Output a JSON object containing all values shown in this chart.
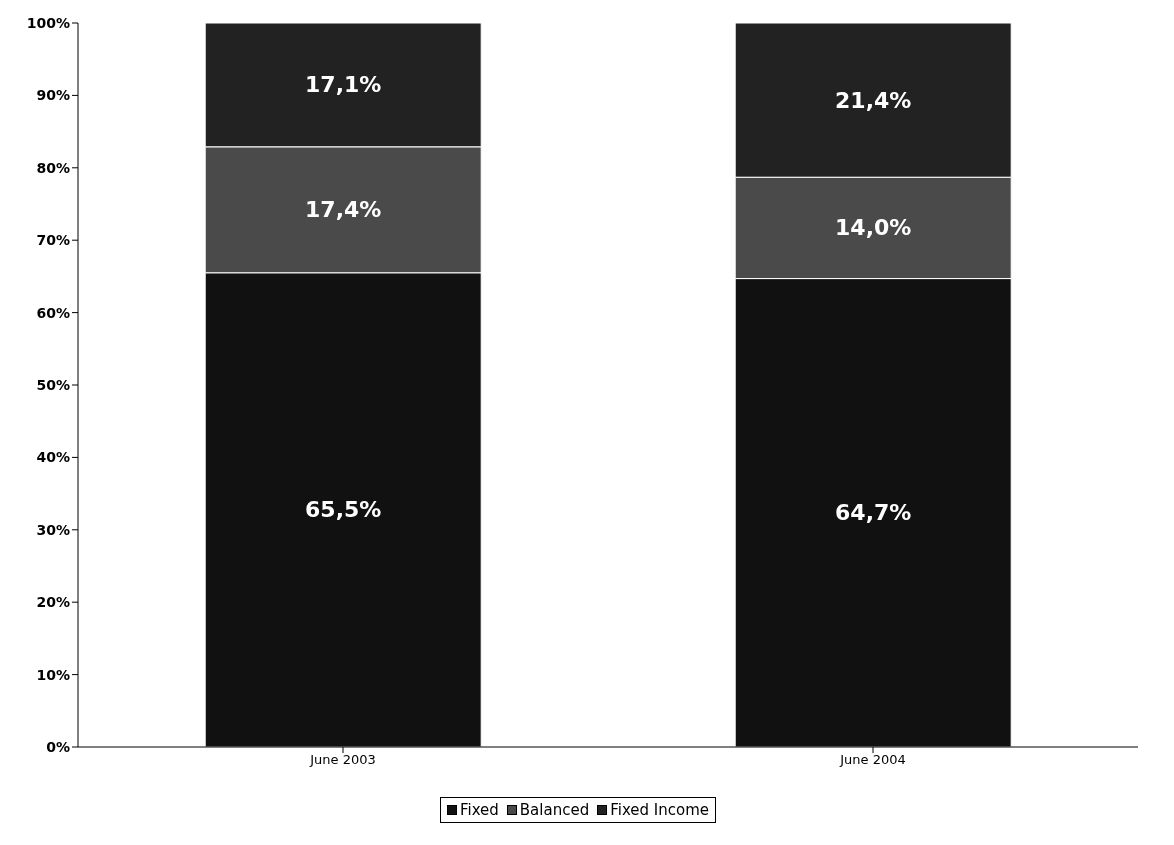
{
  "chart_data": {
    "type": "bar",
    "stacked": true,
    "categories": [
      "June 2003",
      "June 2004"
    ],
    "series": [
      {
        "name": "Fixed",
        "color": "#111111",
        "values": [
          65.5,
          64.7
        ],
        "value_labels": [
          "65,5%",
          "64,7%"
        ]
      },
      {
        "name": "Balanced",
        "color": "#4a4a4a",
        "values": [
          17.4,
          14.0
        ],
        "value_labels": [
          "17,4%",
          "14,0%"
        ]
      },
      {
        "name": "Fixed Income",
        "color": "#222222",
        "values": [
          17.1,
          21.4
        ],
        "value_labels": [
          "17,1%",
          "21,4%"
        ]
      }
    ],
    "ylim": [
      0,
      100
    ],
    "yticks": [
      {
        "value": 0,
        "label": "0%"
      },
      {
        "value": 10,
        "label": "10%"
      },
      {
        "value": 20,
        "label": "20%"
      },
      {
        "value": 30,
        "label": "30%"
      },
      {
        "value": 40,
        "label": "40%"
      },
      {
        "value": 50,
        "label": "50%"
      },
      {
        "value": 60,
        "label": "60%"
      },
      {
        "value": 70,
        "label": "70%"
      },
      {
        "value": 80,
        "label": "80%"
      },
      {
        "value": 90,
        "label": "90%"
      },
      {
        "value": 100,
        "label": "100%"
      }
    ],
    "grid": false,
    "legend": "bottom"
  }
}
